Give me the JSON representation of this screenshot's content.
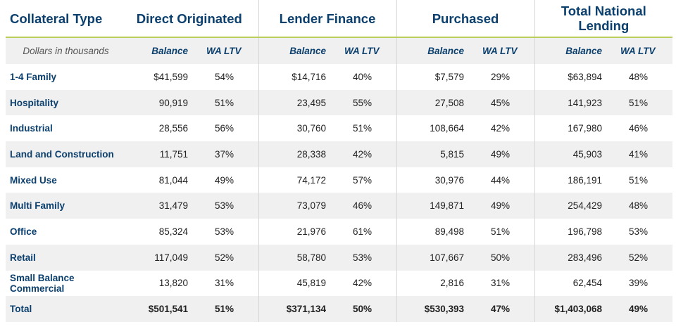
{
  "header": {
    "collateral_type": "Collateral Type",
    "groups": [
      "Direct Originated",
      "Lender Finance",
      "Purchased",
      "Total National Lending"
    ]
  },
  "subheader": {
    "units": "Dollars in thousands",
    "balance": "Balance",
    "wa_ltv": "WA LTV"
  },
  "rows": [
    {
      "label": "1-4 Family",
      "cells": [
        "$41,599",
        "54%",
        "$14,716",
        "40%",
        "$7,579",
        "29%",
        "$63,894",
        "48%"
      ]
    },
    {
      "label": "Hospitality",
      "cells": [
        "90,919",
        "51%",
        "23,495",
        "55%",
        "27,508",
        "45%",
        "141,923",
        "51%"
      ]
    },
    {
      "label": "Industrial",
      "cells": [
        "28,556",
        "56%",
        "30,760",
        "51%",
        "108,664",
        "42%",
        "167,980",
        "46%"
      ]
    },
    {
      "label": "Land and Construction",
      "cells": [
        "11,751",
        "37%",
        "28,338",
        "42%",
        "5,815",
        "49%",
        "45,903",
        "41%"
      ]
    },
    {
      "label": "Mixed Use",
      "cells": [
        "81,044",
        "49%",
        "74,172",
        "57%",
        "30,976",
        "44%",
        "186,191",
        "51%"
      ]
    },
    {
      "label": "Multi Family",
      "cells": [
        "31,479",
        "53%",
        "73,079",
        "46%",
        "149,871",
        "49%",
        "254,429",
        "48%"
      ]
    },
    {
      "label": "Office",
      "cells": [
        "85,324",
        "53%",
        "21,976",
        "61%",
        "89,498",
        "51%",
        "196,798",
        "53%"
      ]
    },
    {
      "label": "Retail",
      "cells": [
        "117,049",
        "52%",
        "58,780",
        "53%",
        "107,667",
        "50%",
        "283,496",
        "52%"
      ]
    },
    {
      "label": "Small Balance Commercial",
      "cells": [
        "13,820",
        "31%",
        "45,819",
        "42%",
        "2,816",
        "31%",
        "62,454",
        "39%"
      ]
    },
    {
      "label": "Total",
      "cells": [
        "$501,541",
        "51%",
        "$371,134",
        "50%",
        "$530,393",
        "47%",
        "$1,403,068",
        "49%"
      ]
    }
  ],
  "colors": {
    "header_text": "#0b3f6d",
    "accent_rule": "#b9cf5a",
    "band": "#f0f0f0"
  }
}
